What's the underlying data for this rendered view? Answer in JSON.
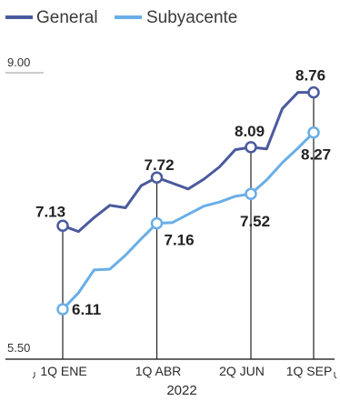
{
  "chart_data": {
    "type": "line",
    "title": "",
    "xlabel": "2022",
    "ylabel": "",
    "ylim": [
      5.5,
      9.0
    ],
    "y_tick_labels": [
      "9.00",
      "5.50"
    ],
    "x_tick_labels": [
      "1Q ENE",
      "1Q ABR",
      "2Q JUN",
      "1Q SEP"
    ],
    "legend_position": "top-left",
    "grid": false,
    "series": [
      {
        "name": "General",
        "color": "#4a5a9e",
        "values": [
          7.13,
          7.06,
          7.23,
          7.38,
          7.35,
          7.62,
          7.72,
          7.65,
          7.58,
          7.7,
          7.85,
          8.06,
          8.09,
          8.07,
          8.56,
          8.76,
          8.76
        ],
        "labels": [
          {
            "index": 0,
            "text": "7.13"
          },
          {
            "index": 6,
            "text": "7.72"
          },
          {
            "index": 12,
            "text": "8.09"
          },
          {
            "index": 16,
            "text": "8.76"
          }
        ]
      },
      {
        "name": "Subyacente",
        "color": "#6aaee6",
        "values": [
          6.11,
          6.31,
          6.59,
          6.6,
          6.77,
          6.97,
          7.16,
          7.17,
          7.27,
          7.37,
          7.42,
          7.49,
          7.52,
          7.69,
          7.9,
          8.08,
          8.27
        ],
        "labels": [
          {
            "index": 0,
            "text": "6.11"
          },
          {
            "index": 6,
            "text": "7.16"
          },
          {
            "index": 12,
            "text": "7.52"
          },
          {
            "index": 16,
            "text": "8.27"
          }
        ]
      }
    ]
  }
}
